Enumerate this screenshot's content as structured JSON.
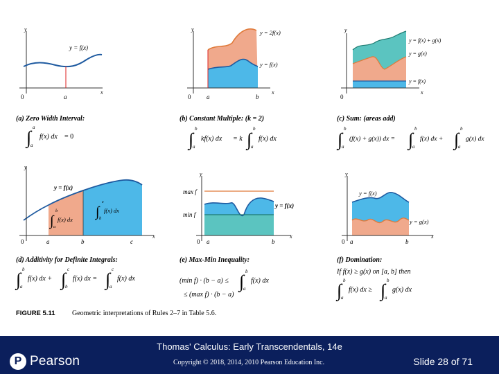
{
  "panels": {
    "a": {
      "curve_label": "y = f(x)",
      "x_ticks": [
        "0",
        "a"
      ],
      "caption": "(a) Zero Width Interval:",
      "formula": {
        "lower": "a",
        "upper": "a",
        "integrand": "f(x) dx",
        "rhs": "= 0"
      }
    },
    "b": {
      "upper_label": "y = 2f(x)",
      "lower_label": "y = f(x)",
      "x_ticks": [
        "0",
        "a",
        "b"
      ],
      "caption": "(b) Constant Multiple: (k = 2)",
      "formula": {
        "lower": "a",
        "upper": "b",
        "lhs": "kf(x) dx",
        "mid": "= k",
        "rhs": "f(x) dx"
      }
    },
    "c": {
      "labels": [
        "y = f(x) + g(x)",
        "y = g(x)",
        "y = f(x)"
      ],
      "x_ticks": [
        "0"
      ],
      "caption": "(c) Sum: (areas add)",
      "formula": {
        "lower": "a",
        "upper": "b",
        "t1": "(f(x) + g(x)) dx =",
        "t2": "f(x) dx +",
        "t3": "g(x) dx"
      }
    },
    "d": {
      "curve_label": "y = f(x)",
      "region1": {
        "lower": "a",
        "upper": "b",
        "integrand": "f(x) dx"
      },
      "region2": {
        "lower": "b",
        "upper": "c",
        "integrand": "f(x) dx"
      },
      "x_ticks": [
        "0",
        "a",
        "b",
        "c"
      ],
      "caption": "(d) Additivity for Definite Integrals:",
      "formula": {
        "t1": "f(x) dx +",
        "t2": "f(x) dx =",
        "t3": "f(x) dx",
        "l1": "a",
        "u1": "b",
        "l2": "b",
        "u2": "c",
        "l3": "a",
        "u3": "c"
      }
    },
    "e": {
      "y_labels": [
        "max f",
        "min f"
      ],
      "curve_label": "y = f(x)",
      "x_ticks": [
        "0",
        "a",
        "b"
      ],
      "caption": "(e) Max-Min Inequality:",
      "formula": {
        "line1": "(min f) · (b − a) ≤",
        "integral": "f(x) dx",
        "line2": "≤ (max f) · (b − a)",
        "lower": "a",
        "upper": "b"
      }
    },
    "f": {
      "labels": [
        "y = f(x)",
        "y = g(x)"
      ],
      "x_ticks": [
        "0",
        "a",
        "b"
      ],
      "caption": "(f) Domination:",
      "condition": "If f(x) ≥ g(x) on [a, b] then",
      "formula": {
        "t1": "f(x) dx ≥",
        "t2": "g(x) dx",
        "lower": "a",
        "upper": "b"
      }
    }
  },
  "axis_letters": {
    "x": "x",
    "y": "y"
  },
  "figure_caption": {
    "label": "FIGURE 5.11",
    "text": "Geometric interpretations of Rules 2–7 in Table 5.6."
  },
  "footer": {
    "title": "Thomas' Calculus: Early Transcendentals, 14e",
    "copyright": "Copyright © 2018, 2014, 2010 Pearson Education Inc.",
    "slide": "Slide 28 of 71",
    "logo_text": "Pearson",
    "logo_mark": "P"
  },
  "colors": {
    "blue": "#4db8e8",
    "salmon": "#f0a98c",
    "teal": "#5bc4c0",
    "curve": "#1e5aa0",
    "orange_curve": "#e07a3a",
    "footer_bg": "#0b1f5c"
  }
}
